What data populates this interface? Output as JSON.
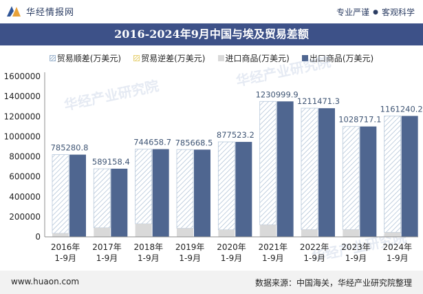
{
  "brand": {
    "name": "华经情报网",
    "tagline_left": "专业严谨",
    "tagline_right": "客观科学"
  },
  "footer": {
    "website": "www.huaon.com",
    "source": "数据来源：中国海关，华经产业研究院整理"
  },
  "watermark": "华经产业研究院",
  "colors": {
    "title_bar": "#3d5188",
    "export": "#4f6690",
    "import": "#d9d9d9",
    "surplus_hatch": "#9fb6cf",
    "deficit_hatch": "#e8d37a",
    "label": "#3f5574"
  },
  "chart_data": {
    "type": "bar",
    "title": "2016-2024年9月中国与埃及贸易差额",
    "categories": [
      [
        "2016年",
        "1-9月"
      ],
      [
        "2017年",
        "1-9月"
      ],
      [
        "2018年",
        "1-9月"
      ],
      [
        "2019年",
        "1-9月"
      ],
      [
        "2020年",
        "1-9月"
      ],
      [
        "2021年",
        "1-9月"
      ],
      [
        "2022年",
        "1-9月"
      ],
      [
        "2023年",
        "1-9月"
      ],
      [
        "2024年",
        "1-9月"
      ]
    ],
    "legend": [
      "贸易顺差(万美元)",
      "贸易逆差(万美元)",
      "进口商品(万美元)",
      "出口商品(万美元)"
    ],
    "series": [
      {
        "name": "贸易顺差(万美元)",
        "values": [
          785280.8,
          589158.4,
          744658.7,
          785668.5,
          877523.2,
          1230999.9,
          1211471.3,
          1028717.1,
          1161240.2
        ]
      },
      {
        "name": "贸易逆差(万美元)",
        "values": [
          0,
          0,
          0,
          0,
          0,
          0,
          0,
          0,
          0
        ]
      },
      {
        "name": "进口商品(万美元)",
        "values": [
          35000,
          90000,
          130000,
          85000,
          70000,
          120000,
          72000,
          72000,
          45000
        ]
      },
      {
        "name": "出口商品(万美元)",
        "values": [
          820000,
          680000,
          875000,
          870000,
          947000,
          1351000,
          1283000,
          1101000,
          1206000
        ]
      }
    ],
    "data_labels": [
      "785280.8",
      "589158.4",
      "744658.7",
      "785668.5",
      "877523.2",
      "1230999.9",
      "1211471.3",
      "1028717.1",
      "1161240.2"
    ],
    "y_ticks": [
      "0",
      "200000",
      "400000",
      "600000",
      "800000",
      "1000000",
      "1200000",
      "1400000",
      "1600000"
    ],
    "ylim": [
      0,
      1600000
    ],
    "xlabel": "",
    "ylabel": "",
    "grid": false,
    "legend_position": "top-center"
  }
}
